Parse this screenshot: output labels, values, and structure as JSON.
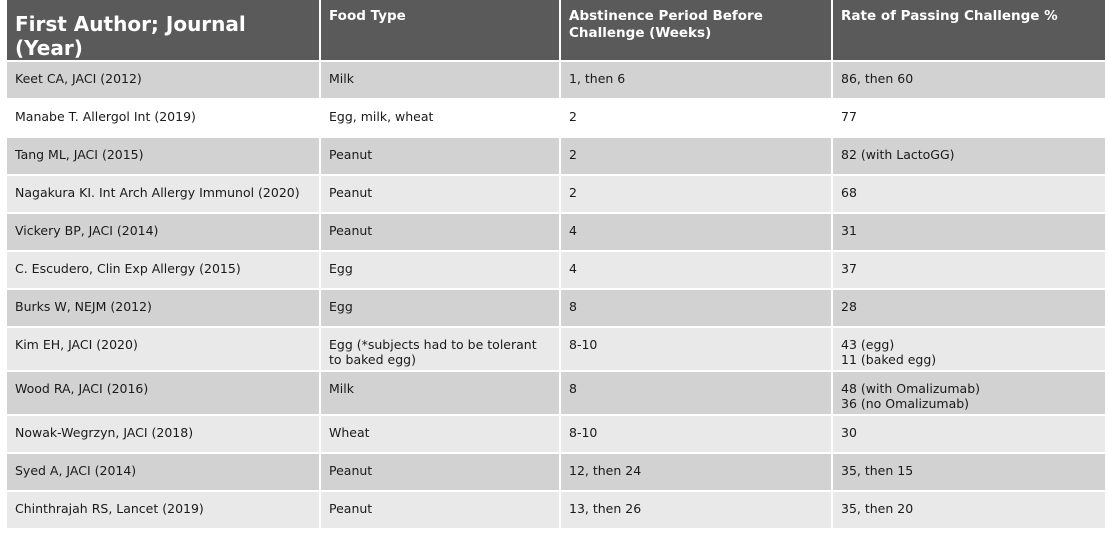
{
  "headers": [
    "First Author; Journal (Year)",
    "Food Type",
    "Abstinence Period Before Challenge (Weeks)",
    "Rate of Passing Challenge %"
  ],
  "rows": [
    {
      "author": "Keet CA, JACI (2012)",
      "food": "Milk",
      "period": "1, then 6",
      "rate": "86, then 60"
    },
    {
      "author": "Manabe T. Allergol Int (2019)",
      "food": "Egg, milk, wheat",
      "period": "2",
      "rate": "77"
    },
    {
      "author": "Tang ML, JACI (2015)",
      "food": "Peanut",
      "period": "2",
      "rate": "82 (with LactoGG)"
    },
    {
      "author": "Nagakura KI. Int Arch Allergy Immunol  (2020)",
      "food": "Peanut",
      "period": "2",
      "rate": "68"
    },
    {
      "author": "Vickery BP, JACI (2014)",
      "food": "Peanut",
      "period": "4",
      "rate": "31"
    },
    {
      "author": "C. Escudero, Clin Exp Allergy (2015)",
      "food": "Egg",
      "period": "4",
      "rate": "37"
    },
    {
      "author": "Burks W, NEJM (2012)",
      "food": "Egg",
      "period": "8",
      "rate": "28"
    },
    {
      "author": "Kim EH, JACI (2020)",
      "food": "Egg (*subjects had to be tolerant to baked egg)",
      "period": "8-10",
      "rate_lines": [
        "43 (egg)",
        "11 (baked egg)"
      ]
    },
    {
      "author": "Wood RA, JACI (2016)",
      "food": "Milk",
      "period": "8",
      "rate_lines": [
        "48 (with Omalizumab)",
        "36 (no Omalizumab)"
      ]
    },
    {
      "author": "Nowak-Wegrzyn, JACI (2018)",
      "food": "Wheat",
      "period": "8-10",
      "rate": "30"
    },
    {
      "author": "Syed A, JACI (2014)",
      "food": "Peanut",
      "period": "12, then 24",
      "rate": "35, then 15"
    },
    {
      "author": "Chinthrajah RS, Lancet (2019)",
      "food": "Peanut",
      "period": "13, then 26",
      "rate": "35, then 20"
    }
  ],
  "colors": {
    "header_bg": "#5a5a5a",
    "row_dark": "#d2d2d2",
    "row_light": "#e9e9e9",
    "row_white": "#ffffff"
  }
}
